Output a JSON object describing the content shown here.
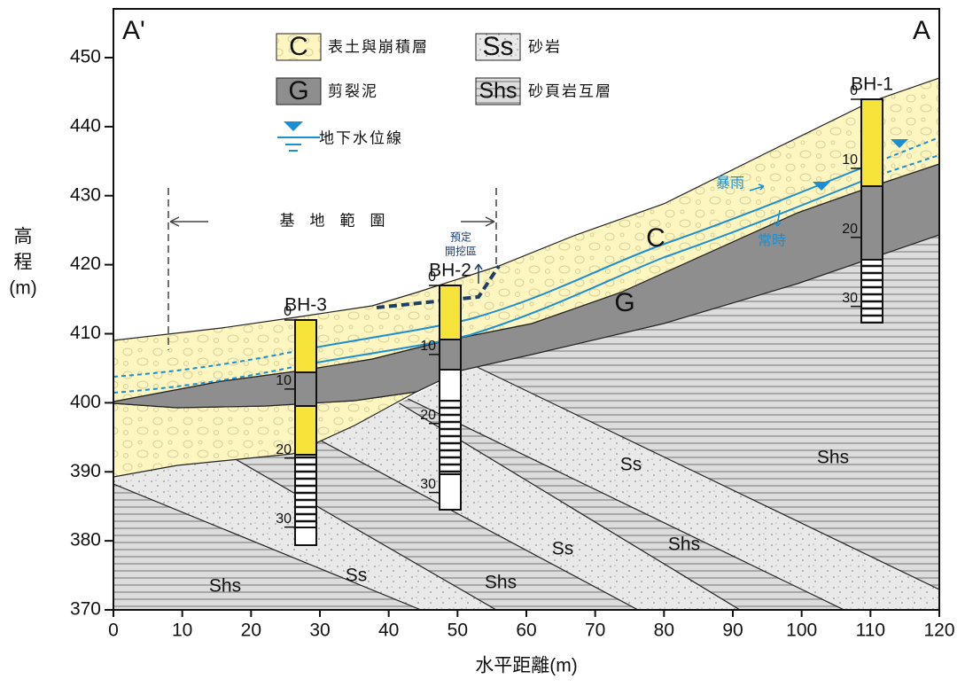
{
  "corner_labels": {
    "left": "A'",
    "right": "A"
  },
  "legend": [
    {
      "symbol": "C",
      "label": "表土與崩積層"
    },
    {
      "symbol": "Ss",
      "label": "砂岩"
    },
    {
      "symbol": "G",
      "label": "剪裂泥"
    },
    {
      "symbol": "Shs",
      "label": "砂頁岩互層"
    },
    {
      "label": "地下水位線"
    }
  ],
  "axes": {
    "x": {
      "title": "水平距離(m)",
      "ticks": [
        0,
        10,
        20,
        30,
        40,
        50,
        60,
        70,
        80,
        90,
        100,
        110,
        120
      ]
    },
    "y": {
      "title": [
        "高",
        "程",
        "(m)"
      ],
      "ticks": [
        370,
        380,
        390,
        400,
        410,
        420,
        430,
        440,
        450
      ]
    }
  },
  "boreholes": [
    {
      "name": "BH-3",
      "depths": [
        0,
        10,
        20,
        30
      ]
    },
    {
      "name": "BH-2",
      "depths": [
        0,
        10,
        20,
        30
      ]
    },
    {
      "name": "BH-1",
      "depths": [
        0,
        10,
        20,
        30
      ]
    }
  ],
  "layer_labels": [
    "C",
    "G",
    "Ss",
    "Shs",
    "Ss",
    "Shs",
    "Ss",
    "Shs",
    "Shs"
  ],
  "site_range": "基　地　範　圍",
  "excavation": [
    "預定",
    "開挖區"
  ],
  "water_levels": {
    "storm": "暴雨",
    "normal": "常時"
  }
}
